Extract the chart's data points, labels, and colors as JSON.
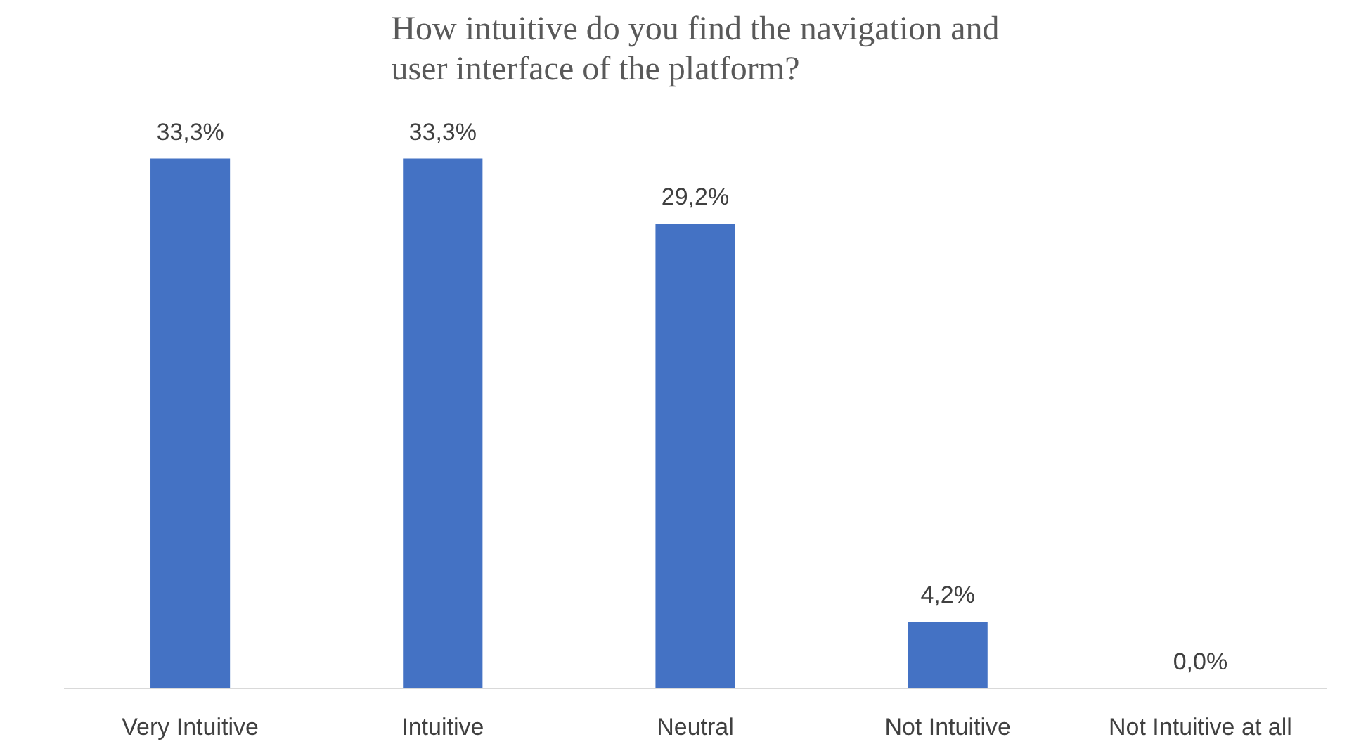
{
  "chart_data": {
    "type": "bar",
    "title": "How intuitive do you find the navigation and user interface of the platform?",
    "categories": [
      "Very Intuitive",
      "Intuitive",
      "Neutral",
      "Not Intuitive",
      "Not Intuitive at all"
    ],
    "values": [
      33.3,
      33.3,
      29.2,
      4.2,
      0.0
    ],
    "value_labels": [
      "33,3%",
      "33,3%",
      "29,2%",
      "4,2%",
      "0,0%"
    ],
    "color": "#4472c4",
    "grid": false,
    "tick_labels": "x"
  }
}
